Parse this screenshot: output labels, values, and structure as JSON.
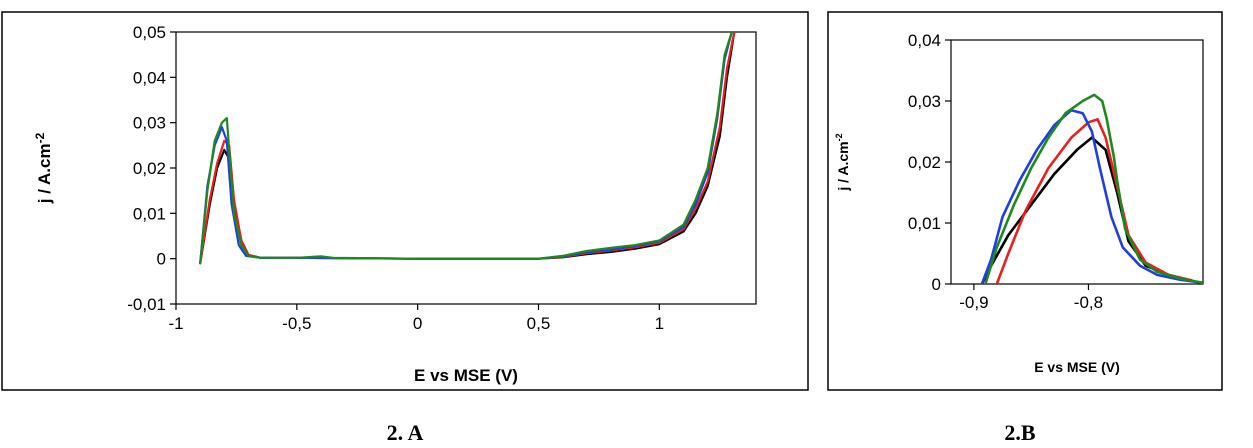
{
  "figure": {
    "panel_a_label": "2. A",
    "panel_b_label": "2.B"
  },
  "chart_data": [
    {
      "id": "A",
      "type": "line",
      "title": "",
      "xlabel": "E vs MSE (V)",
      "ylabel": "j / A.cm-2",
      "ylabel_main": "j / A.cm",
      "ylabel_sup": "-2",
      "xlim": [
        -1,
        1.4
      ],
      "ylim": [
        -0.01,
        0.05
      ],
      "xticks": [
        -1,
        -0.5,
        0,
        0.5,
        1
      ],
      "xtick_labels": [
        "-1",
        "-0,5",
        "0",
        "0,5",
        "1"
      ],
      "yticks": [
        -0.01,
        0,
        0.01,
        0.02,
        0.03,
        0.04,
        0.05
      ],
      "ytick_labels": [
        "-0,01",
        "0",
        "0,01",
        "0,02",
        "0,03",
        "0,04",
        "0,05"
      ],
      "grid": false,
      "legend": "none",
      "series": [
        {
          "color": "#000000",
          "x": [
            -0.9,
            -0.86,
            -0.83,
            -0.8,
            -0.78,
            -0.76,
            -0.73,
            -0.7,
            -0.65,
            -0.5,
            0,
            0.5,
            0.6,
            0.7,
            0.8,
            0.9,
            1.0,
            1.1,
            1.15,
            1.2,
            1.25,
            1.28,
            1.31
          ],
          "y": [
            -0.001,
            0.012,
            0.02,
            0.024,
            0.022,
            0.012,
            0.004,
            0.0008,
            0.0002,
            0.0002,
            0,
            0,
            0.0003,
            0.001,
            0.0015,
            0.0022,
            0.0032,
            0.006,
            0.01,
            0.016,
            0.027,
            0.04,
            0.05
          ]
        },
        {
          "color": "#e8201e",
          "x": [
            -0.9,
            -0.86,
            -0.83,
            -0.8,
            -0.78,
            -0.76,
            -0.73,
            -0.7,
            -0.65,
            -0.5,
            0,
            0.5,
            0.6,
            0.7,
            0.8,
            0.9,
            1.0,
            1.1,
            1.15,
            1.2,
            1.25,
            1.28,
            1.31
          ],
          "y": [
            -0.001,
            0.013,
            0.021,
            0.026,
            0.025,
            0.013,
            0.004,
            0.0008,
            0.0002,
            0.0002,
            0,
            0,
            0.0004,
            0.0012,
            0.0018,
            0.0025,
            0.0035,
            0.0065,
            0.011,
            0.017,
            0.029,
            0.042,
            0.05
          ]
        },
        {
          "color": "#1f3fe0",
          "x": [
            -0.9,
            -0.87,
            -0.84,
            -0.81,
            -0.79,
            -0.77,
            -0.74,
            -0.71,
            -0.65,
            -0.5,
            0,
            0.5,
            0.6,
            0.7,
            0.8,
            0.9,
            1.0,
            1.1,
            1.15,
            1.2,
            1.24,
            1.27,
            1.3
          ],
          "y": [
            -0.001,
            0.016,
            0.025,
            0.029,
            0.026,
            0.012,
            0.003,
            0.0006,
            0.0002,
            0.0002,
            0,
            0,
            0.0005,
            0.0014,
            0.002,
            0.0028,
            0.0038,
            0.007,
            0.012,
            0.019,
            0.031,
            0.044,
            0.05
          ]
        },
        {
          "color": "#1e8a1e",
          "x": [
            -0.9,
            -0.87,
            -0.84,
            -0.81,
            -0.79,
            -0.78,
            -0.76,
            -0.73,
            -0.7,
            -0.65,
            -0.5,
            -0.4,
            -0.35,
            0,
            0.5,
            0.6,
            0.7,
            0.8,
            0.9,
            1.0,
            1.1,
            1.15,
            1.2,
            1.24,
            1.27,
            1.3
          ],
          "y": [
            -0.001,
            0.015,
            0.026,
            0.03,
            0.031,
            0.024,
            0.01,
            0.003,
            0.0006,
            0.0002,
            0.0002,
            0.0005,
            0.0002,
            0,
            0,
            0.0006,
            0.0017,
            0.0024,
            0.003,
            0.004,
            0.0075,
            0.013,
            0.02,
            0.032,
            0.045,
            0.05
          ]
        }
      ]
    },
    {
      "id": "B",
      "type": "line",
      "title": "",
      "xlabel": "E vs MSE (V)",
      "ylabel": "j / A.cm-2",
      "ylabel_main": "j / A.cm",
      "ylabel_sup": "-2",
      "xlim": [
        -0.92,
        -0.7
      ],
      "ylim": [
        0,
        0.04
      ],
      "xticks": [
        -0.9,
        -0.8
      ],
      "xtick_labels": [
        "-0,9",
        "-0,8"
      ],
      "yticks": [
        0,
        0.01,
        0.02,
        0.03,
        0.04
      ],
      "ytick_labels": [
        "0",
        "0,01",
        "0,02",
        "0,03",
        "0,04"
      ],
      "grid": false,
      "legend": "none",
      "series": [
        {
          "color": "#000000",
          "x": [
            -0.893,
            -0.885,
            -0.87,
            -0.85,
            -0.83,
            -0.81,
            -0.797,
            -0.785,
            -0.775,
            -0.765,
            -0.75,
            -0.73,
            -0.71
          ],
          "y": [
            0,
            0.003,
            0.008,
            0.013,
            0.018,
            0.022,
            0.024,
            0.022,
            0.015,
            0.007,
            0.003,
            0.0015,
            0.0005
          ]
        },
        {
          "color": "#e8201e",
          "x": [
            -0.88,
            -0.87,
            -0.855,
            -0.835,
            -0.815,
            -0.8,
            -0.792,
            -0.785,
            -0.775,
            -0.765,
            -0.75,
            -0.73,
            -0.71
          ],
          "y": [
            0,
            0.005,
            0.012,
            0.019,
            0.024,
            0.0265,
            0.027,
            0.024,
            0.016,
            0.008,
            0.0035,
            0.0015,
            0.0006
          ]
        },
        {
          "color": "#1f3fe0",
          "x": [
            -0.893,
            -0.885,
            -0.875,
            -0.86,
            -0.845,
            -0.83,
            -0.815,
            -0.805,
            -0.797,
            -0.79,
            -0.78,
            -0.77,
            -0.755,
            -0.74,
            -0.72,
            -0.7
          ],
          "y": [
            0,
            0.004,
            0.011,
            0.017,
            0.022,
            0.026,
            0.0285,
            0.028,
            0.025,
            0.019,
            0.011,
            0.006,
            0.003,
            0.0015,
            0.0007,
            0.0002
          ]
        },
        {
          "color": "#1e8a1e",
          "x": [
            -0.89,
            -0.88,
            -0.865,
            -0.85,
            -0.835,
            -0.82,
            -0.805,
            -0.795,
            -0.788,
            -0.784,
            -0.781,
            -0.778,
            -0.775,
            -0.768,
            -0.755,
            -0.74,
            -0.72,
            -0.7
          ],
          "y": [
            0,
            0.006,
            0.013,
            0.019,
            0.024,
            0.028,
            0.03,
            0.031,
            0.03,
            0.027,
            0.024,
            0.021,
            0.017,
            0.009,
            0.004,
            0.002,
            0.0009,
            0.0002
          ]
        }
      ]
    }
  ]
}
